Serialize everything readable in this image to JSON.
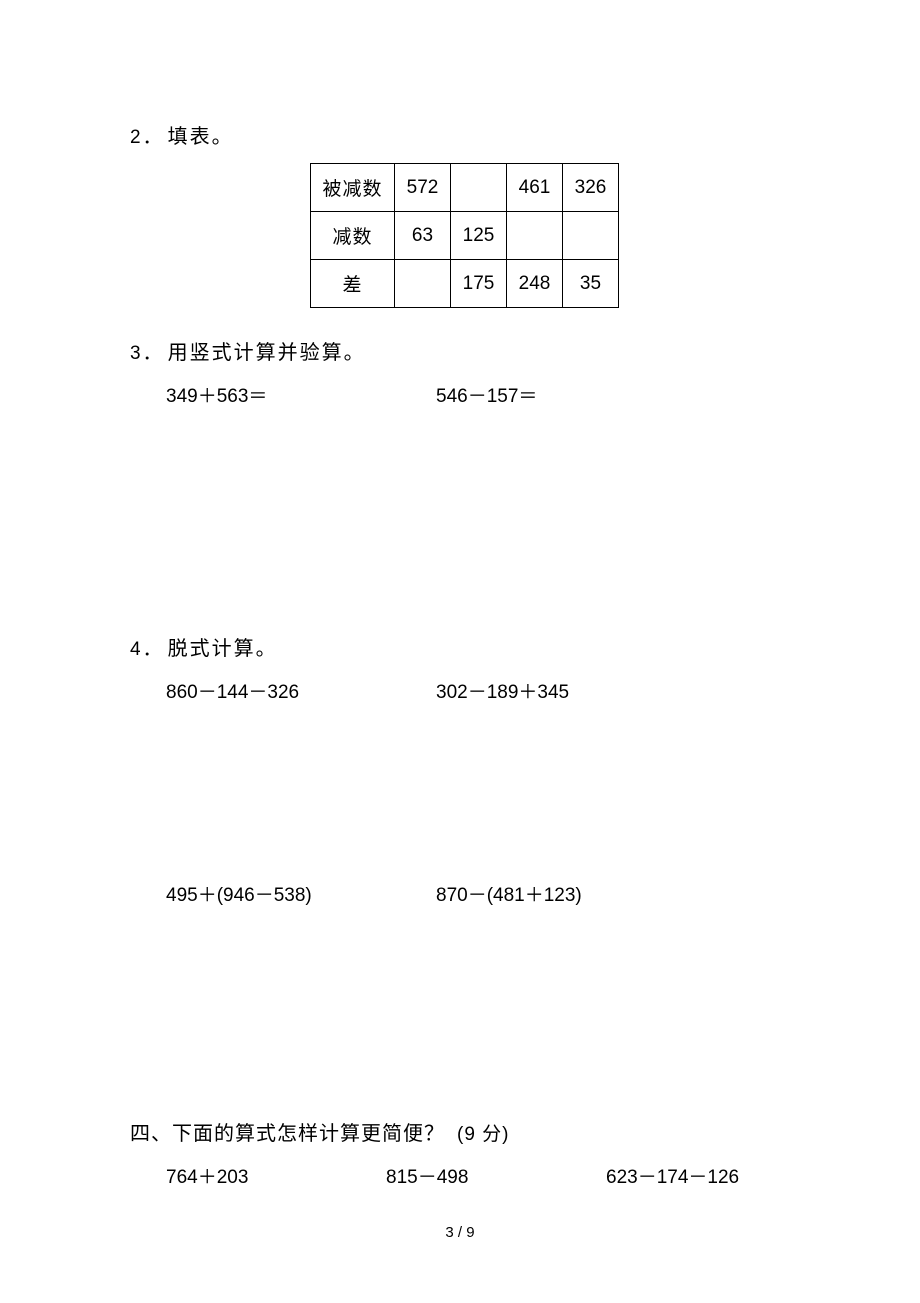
{
  "problem2": {
    "number": "2．",
    "title": "填表。",
    "table": {
      "row_labels": [
        "被减数",
        "减数",
        "差"
      ],
      "cells": {
        "r0c0": "572",
        "r0c1": "",
        "r0c2": "461",
        "r0c3": "326",
        "r1c0": "63",
        "r1c1": "125",
        "r1c2": "",
        "r1c3": "",
        "r2c0": "",
        "r2c1": "175",
        "r2c2": "248",
        "r2c3": "35"
      }
    }
  },
  "problem3": {
    "number": "3．",
    "title": "用竖式计算并验算。",
    "expr1": "349＋563＝",
    "expr2": "546－157＝"
  },
  "problem4": {
    "number": "4．",
    "title": "脱式计算。",
    "row1": {
      "expr1": "860－144－326",
      "expr2": "302－189＋345"
    },
    "row2": {
      "expr1": "495＋(946－538)",
      "expr2": "870－(481＋123)"
    }
  },
  "section4": {
    "heading": "四、下面的算式怎样计算更简便？",
    "points": "(9 分)",
    "expr1": "764＋203",
    "expr2": "815－498",
    "expr3": "623－174－126"
  },
  "page_number": "3 / 9"
}
